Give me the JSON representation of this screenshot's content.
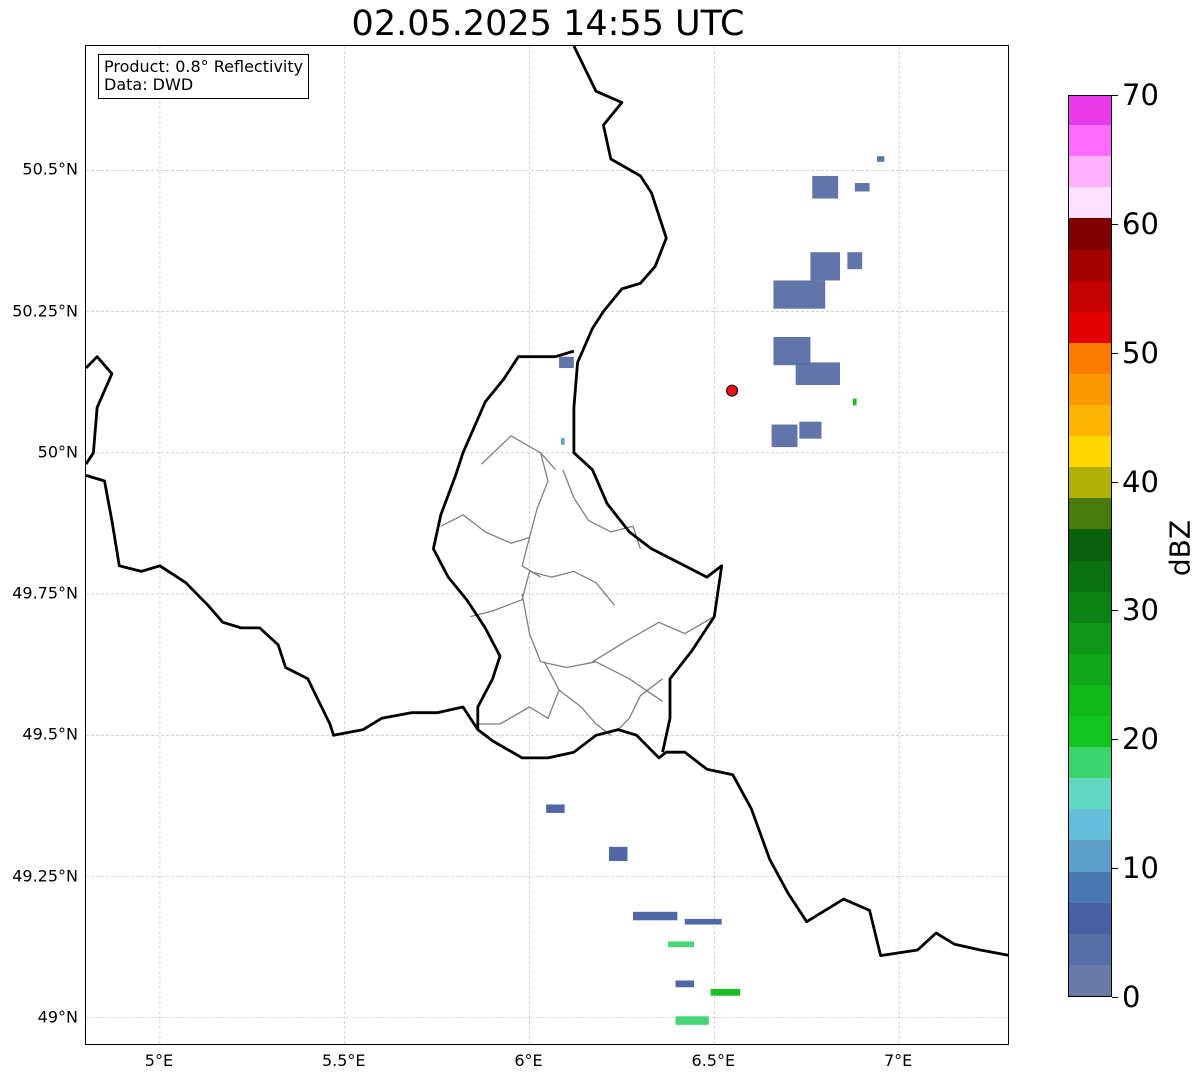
{
  "title": "02.05.2025 14:55 UTC",
  "info_box": {
    "product": "Product: 0.8° Reflectivity",
    "source": "Data: DWD"
  },
  "axes": {
    "lon_range": [
      4.8,
      7.3
    ],
    "lat_range": [
      48.95,
      50.72
    ],
    "lon_ticks": [
      {
        "value": 5.0,
        "label": "5°E"
      },
      {
        "value": 5.5,
        "label": "5.5°E"
      },
      {
        "value": 6.0,
        "label": "6°E"
      },
      {
        "value": 6.5,
        "label": "6.5°E"
      },
      {
        "value": 7.0,
        "label": "7°E"
      }
    ],
    "lat_ticks": [
      {
        "value": 50.5,
        "label": "50.5°N"
      },
      {
        "value": 50.25,
        "label": "50.25°N"
      },
      {
        "value": 50.0,
        "label": "50°N"
      },
      {
        "value": 49.75,
        "label": "49.75°N"
      },
      {
        "value": 49.5,
        "label": "49.5°N"
      },
      {
        "value": 49.25,
        "label": "49.25°N"
      },
      {
        "value": 49.0,
        "label": "49°N"
      }
    ],
    "grid": true
  },
  "colorbar": {
    "unit": "dBZ",
    "min": 0,
    "max": 70,
    "ticks": [
      {
        "value": 0,
        "label": "0"
      },
      {
        "value": 10,
        "label": "10"
      },
      {
        "value": 20,
        "label": "20"
      },
      {
        "value": 30,
        "label": "30"
      },
      {
        "value": 40,
        "label": "40"
      },
      {
        "value": 50,
        "label": "50"
      },
      {
        "value": 60,
        "label": "60"
      },
      {
        "value": 70,
        "label": "70"
      }
    ],
    "colors": [
      "#6a7aa8",
      "#586ea4",
      "#4860a2",
      "#4a78b0",
      "#5c9ec8",
      "#64c0da",
      "#62d8c2",
      "#3cd46e",
      "#12c41e",
      "#10b81a",
      "#10a818",
      "#0e9616",
      "#0c8214",
      "#0a7010",
      "#0a5e0c",
      "#4a7a0a",
      "#b0b006",
      "#fcd800",
      "#fcb400",
      "#fc9800",
      "#fc7c00",
      "#e40000",
      "#c40000",
      "#a40000",
      "#800000",
      "#ffe0ff",
      "#ffb0ff",
      "#ff6cff",
      "#e83ae8"
    ]
  },
  "radar_marker": {
    "lon": 6.548,
    "lat": 50.11,
    "color": "#ee1111"
  },
  "borders": {
    "national": [
      [
        [
          6.12,
          50.72
        ],
        [
          6.18,
          50.64
        ],
        [
          6.25,
          50.62
        ],
        [
          6.2,
          50.58
        ],
        [
          6.22,
          50.52
        ],
        [
          6.3,
          50.49
        ],
        [
          6.33,
          50.46
        ],
        [
          6.37,
          50.38
        ],
        [
          6.34,
          50.33
        ],
        [
          6.3,
          50.3
        ],
        [
          6.25,
          50.29
        ],
        [
          6.2,
          50.25
        ],
        [
          6.17,
          50.22
        ],
        [
          6.13,
          50.16
        ],
        [
          6.12,
          50.08
        ],
        [
          6.12,
          50.0
        ],
        [
          6.17,
          49.97
        ],
        [
          6.21,
          49.91
        ],
        [
          6.27,
          49.86
        ],
        [
          6.33,
          49.83
        ],
        [
          6.42,
          49.8
        ],
        [
          6.48,
          49.78
        ],
        [
          6.52,
          49.8
        ],
        [
          6.5,
          49.71
        ],
        [
          6.44,
          49.65
        ],
        [
          6.38,
          49.6
        ],
        [
          6.38,
          49.53
        ],
        [
          6.36,
          49.47
        ]
      ],
      [
        [
          4.8,
          50.15
        ],
        [
          4.83,
          50.17
        ],
        [
          4.87,
          50.14
        ],
        [
          4.83,
          50.08
        ],
        [
          4.82,
          50.0
        ],
        [
          4.8,
          49.98
        ]
      ],
      [
        [
          4.8,
          49.96
        ],
        [
          4.85,
          49.95
        ],
        [
          4.87,
          49.88
        ],
        [
          4.89,
          49.8
        ],
        [
          4.95,
          49.79
        ],
        [
          5.0,
          49.8
        ],
        [
          5.07,
          49.77
        ],
        [
          5.13,
          49.73
        ],
        [
          5.17,
          49.7
        ],
        [
          5.22,
          49.69
        ],
        [
          5.27,
          49.69
        ],
        [
          5.32,
          49.66
        ],
        [
          5.34,
          49.62
        ],
        [
          5.4,
          49.6
        ],
        [
          5.43,
          49.56
        ],
        [
          5.46,
          49.52
        ],
        [
          5.47,
          49.5
        ],
        [
          5.55,
          49.51
        ],
        [
          5.6,
          49.53
        ],
        [
          5.68,
          49.54
        ],
        [
          5.75,
          49.54
        ],
        [
          5.82,
          49.55
        ],
        [
          5.86,
          49.51
        ],
        [
          5.9,
          49.49
        ],
        [
          5.98,
          49.46
        ],
        [
          6.05,
          49.46
        ],
        [
          6.12,
          49.47
        ],
        [
          6.18,
          49.5
        ],
        [
          6.24,
          49.51
        ],
        [
          6.29,
          49.5
        ],
        [
          6.35,
          49.46
        ],
        [
          6.37,
          49.47
        ],
        [
          6.42,
          49.47
        ],
        [
          6.48,
          49.44
        ],
        [
          6.55,
          49.43
        ],
        [
          6.6,
          49.37
        ],
        [
          6.65,
          49.28
        ],
        [
          6.7,
          49.22
        ],
        [
          6.75,
          49.17
        ],
        [
          6.85,
          49.21
        ],
        [
          6.92,
          49.19
        ],
        [
          6.95,
          49.11
        ],
        [
          7.05,
          49.12
        ],
        [
          7.1,
          49.15
        ],
        [
          7.15,
          49.13
        ],
        [
          7.22,
          49.12
        ],
        [
          7.3,
          49.11
        ]
      ],
      [
        [
          6.12,
          50.18
        ],
        [
          6.07,
          50.17
        ],
        [
          6.03,
          50.17
        ],
        [
          5.97,
          50.17
        ],
        [
          5.93,
          50.13
        ],
        [
          5.88,
          50.09
        ],
        [
          5.86,
          50.06
        ],
        [
          5.82,
          50.0
        ],
        [
          5.8,
          49.96
        ],
        [
          5.76,
          49.89
        ],
        [
          5.74,
          49.83
        ],
        [
          5.78,
          49.78
        ],
        [
          5.83,
          49.74
        ],
        [
          5.88,
          49.69
        ],
        [
          5.92,
          49.64
        ],
        [
          5.9,
          49.6
        ],
        [
          5.86,
          49.55
        ],
        [
          5.86,
          49.51
        ]
      ]
    ],
    "regional": [
      [
        [
          5.87,
          49.98
        ],
        [
          5.95,
          50.03
        ],
        [
          6.03,
          50.0
        ],
        [
          6.07,
          49.97
        ]
      ],
      [
        [
          6.03,
          50.0
        ],
        [
          6.05,
          49.95
        ],
        [
          6.02,
          49.9
        ],
        [
          6.0,
          49.85
        ],
        [
          5.98,
          49.8
        ],
        [
          6.03,
          49.78
        ]
      ],
      [
        [
          5.76,
          49.87
        ],
        [
          5.82,
          49.89
        ],
        [
          5.88,
          49.86
        ],
        [
          5.95,
          49.84
        ],
        [
          6.0,
          49.85
        ]
      ],
      [
        [
          6.09,
          49.97
        ],
        [
          6.12,
          49.92
        ],
        [
          6.16,
          49.88
        ],
        [
          6.22,
          49.86
        ],
        [
          6.28,
          49.87
        ],
        [
          6.3,
          49.83
        ]
      ],
      [
        [
          6.0,
          49.79
        ],
        [
          6.06,
          49.78
        ],
        [
          6.12,
          49.79
        ],
        [
          6.18,
          49.77
        ],
        [
          6.23,
          49.73
        ]
      ],
      [
        [
          5.98,
          49.75
        ],
        [
          6.0,
          49.68
        ],
        [
          6.03,
          49.63
        ],
        [
          6.1,
          49.62
        ],
        [
          6.18,
          49.63
        ],
        [
          6.27,
          49.6
        ],
        [
          6.36,
          49.56
        ]
      ],
      [
        [
          5.84,
          49.71
        ],
        [
          5.9,
          49.72
        ],
        [
          5.98,
          49.74
        ],
        [
          6.0,
          49.79
        ]
      ],
      [
        [
          6.17,
          49.63
        ],
        [
          6.27,
          49.67
        ],
        [
          6.35,
          49.7
        ],
        [
          6.42,
          49.68
        ],
        [
          6.5,
          49.71
        ]
      ],
      [
        [
          6.04,
          49.63
        ],
        [
          6.08,
          49.58
        ],
        [
          6.05,
          49.53
        ],
        [
          6.0,
          49.55
        ],
        [
          5.92,
          49.52
        ],
        [
          5.86,
          49.52
        ]
      ],
      [
        [
          6.08,
          49.58
        ],
        [
          6.14,
          49.55
        ],
        [
          6.18,
          49.52
        ],
        [
          6.22,
          49.5
        ]
      ],
      [
        [
          6.36,
          49.6
        ],
        [
          6.3,
          49.57
        ],
        [
          6.27,
          49.53
        ],
        [
          6.24,
          49.51
        ]
      ]
    ]
  },
  "echoes": [
    {
      "lon": 6.73,
      "lat": 50.28,
      "w": 0.14,
      "h": 0.05,
      "dbz": 3
    },
    {
      "lon": 6.8,
      "lat": 50.33,
      "w": 0.08,
      "h": 0.05,
      "dbz": 3
    },
    {
      "lon": 6.88,
      "lat": 50.34,
      "w": 0.04,
      "h": 0.03,
      "dbz": 3
    },
    {
      "lon": 6.8,
      "lat": 50.47,
      "w": 0.07,
      "h": 0.04,
      "dbz": 3
    },
    {
      "lon": 6.9,
      "lat": 50.47,
      "w": 0.04,
      "h": 0.015,
      "dbz": 3
    },
    {
      "lon": 6.71,
      "lat": 50.18,
      "w": 0.1,
      "h": 0.05,
      "dbz": 3
    },
    {
      "lon": 6.78,
      "lat": 50.14,
      "w": 0.12,
      "h": 0.04,
      "dbz": 3
    },
    {
      "lon": 6.69,
      "lat": 50.03,
      "w": 0.07,
      "h": 0.04,
      "dbz": 3
    },
    {
      "lon": 6.76,
      "lat": 50.04,
      "w": 0.06,
      "h": 0.03,
      "dbz": 3
    },
    {
      "lon": 6.95,
      "lat": 50.52,
      "w": 0.02,
      "h": 0.01,
      "dbz": 3
    },
    {
      "lon": 6.1,
      "lat": 50.16,
      "w": 0.04,
      "h": 0.02,
      "dbz": 3
    },
    {
      "lon": 6.09,
      "lat": 50.02,
      "w": 0.01,
      "h": 0.012,
      "dbz": 12
    },
    {
      "lon": 6.88,
      "lat": 50.09,
      "w": 0.01,
      "h": 0.012,
      "dbz": 22
    },
    {
      "lon": 6.07,
      "lat": 49.37,
      "w": 0.05,
      "h": 0.015,
      "dbz": 7
    },
    {
      "lon": 6.24,
      "lat": 49.29,
      "w": 0.05,
      "h": 0.025,
      "dbz": 7
    },
    {
      "lon": 6.34,
      "lat": 49.18,
      "w": 0.12,
      "h": 0.015,
      "dbz": 7
    },
    {
      "lon": 6.47,
      "lat": 49.17,
      "w": 0.1,
      "h": 0.01,
      "dbz": 7
    },
    {
      "lon": 6.41,
      "lat": 49.13,
      "w": 0.07,
      "h": 0.01,
      "dbz": 17
    },
    {
      "lon": 6.42,
      "lat": 49.06,
      "w": 0.05,
      "h": 0.012,
      "dbz": 7
    },
    {
      "lon": 6.53,
      "lat": 49.045,
      "w": 0.08,
      "h": 0.012,
      "dbz": 24
    },
    {
      "lon": 6.44,
      "lat": 48.995,
      "w": 0.09,
      "h": 0.015,
      "dbz": 18
    }
  ]
}
